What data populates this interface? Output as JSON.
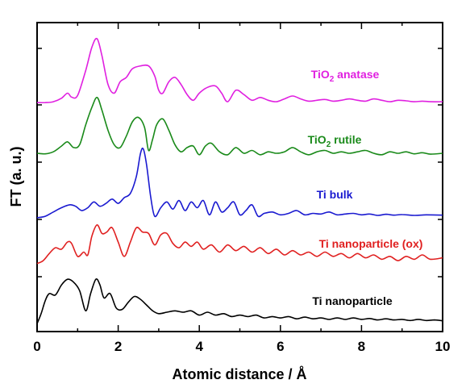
{
  "chart_data": {
    "type": "line",
    "xlabel": "Atomic distance / Å",
    "ylabel": "FT (a. u.)",
    "xlim": [
      0,
      10
    ],
    "ylim": [
      0,
      10
    ],
    "x_ticks": [
      0,
      2,
      4,
      6,
      8,
      10
    ],
    "x_tick_labels": [
      "0",
      "2",
      "4",
      "6",
      "8",
      "10"
    ],
    "grid": false,
    "series": [
      {
        "name_main": "TiO",
        "name_sub": "2",
        "name_rest": " anatase",
        "color": "#e020e0",
        "points": [
          [
            0,
            7.77
          ],
          [
            0.2,
            7.77
          ],
          [
            0.4,
            7.8
          ],
          [
            0.6,
            7.92
          ],
          [
            0.75,
            8.1
          ],
          [
            0.85,
            7.96
          ],
          [
            1.0,
            8.02
          ],
          [
            1.2,
            8.9
          ],
          [
            1.35,
            9.7
          ],
          [
            1.48,
            10.0
          ],
          [
            1.6,
            9.4
          ],
          [
            1.75,
            8.4
          ],
          [
            1.9,
            8.1
          ],
          [
            2.05,
            8.5
          ],
          [
            2.2,
            8.65
          ],
          [
            2.35,
            8.95
          ],
          [
            2.55,
            9.05
          ],
          [
            2.75,
            9.05
          ],
          [
            2.9,
            8.7
          ],
          [
            3.0,
            8.2
          ],
          [
            3.1,
            8.1
          ],
          [
            3.25,
            8.5
          ],
          [
            3.4,
            8.65
          ],
          [
            3.55,
            8.4
          ],
          [
            3.7,
            8.05
          ],
          [
            3.85,
            7.85
          ],
          [
            4.0,
            8.1
          ],
          [
            4.2,
            8.3
          ],
          [
            4.4,
            8.35
          ],
          [
            4.55,
            8.1
          ],
          [
            4.7,
            7.8
          ],
          [
            4.9,
            8.2
          ],
          [
            5.1,
            8.05
          ],
          [
            5.3,
            7.85
          ],
          [
            5.5,
            7.95
          ],
          [
            5.7,
            7.85
          ],
          [
            5.9,
            7.8
          ],
          [
            6.1,
            7.9
          ],
          [
            6.3,
            8.0
          ],
          [
            6.5,
            7.9
          ],
          [
            6.7,
            7.82
          ],
          [
            6.9,
            7.85
          ],
          [
            7.1,
            7.88
          ],
          [
            7.3,
            7.82
          ],
          [
            7.5,
            7.85
          ],
          [
            7.7,
            7.9
          ],
          [
            7.9,
            7.85
          ],
          [
            8.1,
            7.82
          ],
          [
            8.3,
            7.9
          ],
          [
            8.5,
            7.85
          ],
          [
            8.7,
            7.8
          ],
          [
            8.9,
            7.85
          ],
          [
            9.1,
            7.83
          ],
          [
            9.3,
            7.8
          ],
          [
            9.5,
            7.82
          ],
          [
            9.7,
            7.8
          ],
          [
            10.0,
            7.8
          ]
        ]
      },
      {
        "name_main": "TiO",
        "name_sub": "2",
        "name_rest": " rutile",
        "color": "#1a8a1a",
        "points": [
          [
            0,
            6.0
          ],
          [
            0.2,
            5.98
          ],
          [
            0.4,
            6.05
          ],
          [
            0.6,
            6.25
          ],
          [
            0.75,
            6.4
          ],
          [
            0.9,
            6.2
          ],
          [
            1.05,
            6.3
          ],
          [
            1.2,
            7.0
          ],
          [
            1.35,
            7.6
          ],
          [
            1.48,
            7.95
          ],
          [
            1.6,
            7.5
          ],
          [
            1.75,
            6.8
          ],
          [
            1.9,
            6.3
          ],
          [
            2.05,
            6.2
          ],
          [
            2.2,
            6.6
          ],
          [
            2.35,
            7.1
          ],
          [
            2.5,
            7.25
          ],
          [
            2.65,
            6.9
          ],
          [
            2.75,
            6.1
          ],
          [
            2.85,
            6.5
          ],
          [
            2.95,
            7.0
          ],
          [
            3.1,
            7.2
          ],
          [
            3.25,
            6.8
          ],
          [
            3.4,
            6.3
          ],
          [
            3.55,
            6.05
          ],
          [
            3.7,
            6.2
          ],
          [
            3.85,
            6.25
          ],
          [
            4.0,
            5.95
          ],
          [
            4.15,
            6.25
          ],
          [
            4.3,
            6.35
          ],
          [
            4.5,
            6.05
          ],
          [
            4.7,
            5.95
          ],
          [
            4.9,
            6.2
          ],
          [
            5.1,
            6.0
          ],
          [
            5.3,
            6.1
          ],
          [
            5.5,
            5.95
          ],
          [
            5.7,
            6.05
          ],
          [
            5.9,
            6.0
          ],
          [
            6.1,
            6.05
          ],
          [
            6.3,
            6.2
          ],
          [
            6.5,
            6.05
          ],
          [
            6.7,
            5.95
          ],
          [
            6.9,
            6.05
          ],
          [
            7.1,
            6.1
          ],
          [
            7.3,
            6.0
          ],
          [
            7.5,
            6.05
          ],
          [
            7.7,
            6.0
          ],
          [
            7.9,
            6.05
          ],
          [
            8.1,
            6.1
          ],
          [
            8.3,
            6.0
          ],
          [
            8.5,
            5.95
          ],
          [
            8.7,
            6.05
          ],
          [
            8.9,
            6.0
          ],
          [
            9.1,
            6.05
          ],
          [
            9.3,
            5.98
          ],
          [
            9.5,
            6.02
          ],
          [
            9.7,
            5.97
          ],
          [
            10.0,
            6.0
          ]
        ]
      },
      {
        "name_main": "Ti bulk",
        "name_sub": "",
        "name_rest": "",
        "color": "#1a1ad0",
        "points": [
          [
            0,
            3.75
          ],
          [
            0.2,
            3.8
          ],
          [
            0.4,
            3.95
          ],
          [
            0.6,
            4.1
          ],
          [
            0.8,
            4.2
          ],
          [
            0.95,
            4.15
          ],
          [
            1.1,
            4.0
          ],
          [
            1.25,
            4.1
          ],
          [
            1.4,
            4.3
          ],
          [
            1.55,
            4.15
          ],
          [
            1.7,
            4.25
          ],
          [
            1.85,
            4.4
          ],
          [
            2.0,
            4.25
          ],
          [
            2.15,
            4.45
          ],
          [
            2.3,
            4.6
          ],
          [
            2.45,
            5.2
          ],
          [
            2.55,
            6.0
          ],
          [
            2.62,
            6.15
          ],
          [
            2.7,
            5.6
          ],
          [
            2.8,
            4.5
          ],
          [
            2.9,
            3.8
          ],
          [
            3.05,
            4.1
          ],
          [
            3.2,
            4.3
          ],
          [
            3.35,
            4.05
          ],
          [
            3.5,
            4.35
          ],
          [
            3.65,
            4.0
          ],
          [
            3.8,
            4.3
          ],
          [
            3.95,
            4.1
          ],
          [
            4.1,
            4.35
          ],
          [
            4.25,
            3.85
          ],
          [
            4.4,
            4.3
          ],
          [
            4.55,
            3.95
          ],
          [
            4.7,
            4.1
          ],
          [
            4.85,
            4.3
          ],
          [
            5.0,
            3.85
          ],
          [
            5.15,
            4.0
          ],
          [
            5.3,
            4.2
          ],
          [
            5.45,
            3.8
          ],
          [
            5.6,
            3.9
          ],
          [
            5.8,
            3.95
          ],
          [
            6.0,
            3.85
          ],
          [
            6.2,
            3.9
          ],
          [
            6.4,
            4.0
          ],
          [
            6.6,
            3.85
          ],
          [
            6.8,
            3.9
          ],
          [
            7.0,
            3.88
          ],
          [
            7.2,
            3.95
          ],
          [
            7.4,
            3.85
          ],
          [
            7.6,
            3.88
          ],
          [
            7.8,
            3.9
          ],
          [
            8.0,
            3.85
          ],
          [
            8.2,
            3.88
          ],
          [
            8.4,
            3.83
          ],
          [
            8.6,
            3.87
          ],
          [
            8.8,
            3.84
          ],
          [
            9.0,
            3.86
          ],
          [
            9.3,
            3.83
          ],
          [
            9.6,
            3.85
          ],
          [
            10.0,
            3.84
          ]
        ]
      },
      {
        "name_main": "Ti nanoparticle (ox)",
        "name_sub": "",
        "name_rest": "",
        "color": "#e02020",
        "points": [
          [
            0,
            2.15
          ],
          [
            0.15,
            2.25
          ],
          [
            0.3,
            2.5
          ],
          [
            0.45,
            2.7
          ],
          [
            0.6,
            2.65
          ],
          [
            0.75,
            2.9
          ],
          [
            0.85,
            2.85
          ],
          [
            1.0,
            2.4
          ],
          [
            1.15,
            2.55
          ],
          [
            1.25,
            2.45
          ],
          [
            1.35,
            3.1
          ],
          [
            1.48,
            3.5
          ],
          [
            1.6,
            3.2
          ],
          [
            1.72,
            3.25
          ],
          [
            1.85,
            3.4
          ],
          [
            2.0,
            2.9
          ],
          [
            2.15,
            2.4
          ],
          [
            2.3,
            2.9
          ],
          [
            2.45,
            3.4
          ],
          [
            2.6,
            3.25
          ],
          [
            2.75,
            3.2
          ],
          [
            2.9,
            2.8
          ],
          [
            3.05,
            3.15
          ],
          [
            3.2,
            3.2
          ],
          [
            3.35,
            2.85
          ],
          [
            3.5,
            2.7
          ],
          [
            3.65,
            2.9
          ],
          [
            3.8,
            2.75
          ],
          [
            3.95,
            2.9
          ],
          [
            4.1,
            2.65
          ],
          [
            4.3,
            2.8
          ],
          [
            4.5,
            2.55
          ],
          [
            4.7,
            2.8
          ],
          [
            4.9,
            2.6
          ],
          [
            5.1,
            2.75
          ],
          [
            5.3,
            2.55
          ],
          [
            5.5,
            2.7
          ],
          [
            5.7,
            2.5
          ],
          [
            5.9,
            2.65
          ],
          [
            6.1,
            2.45
          ],
          [
            6.3,
            2.6
          ],
          [
            6.5,
            2.45
          ],
          [
            6.7,
            2.55
          ],
          [
            6.9,
            2.4
          ],
          [
            7.1,
            2.55
          ],
          [
            7.3,
            2.4
          ],
          [
            7.5,
            2.5
          ],
          [
            7.7,
            2.35
          ],
          [
            7.9,
            2.5
          ],
          [
            8.1,
            2.35
          ],
          [
            8.3,
            2.45
          ],
          [
            8.5,
            2.3
          ],
          [
            8.7,
            2.4
          ],
          [
            8.9,
            2.25
          ],
          [
            9.1,
            2.4
          ],
          [
            9.3,
            2.3
          ],
          [
            9.5,
            2.45
          ],
          [
            9.7,
            2.3
          ],
          [
            10.0,
            2.35
          ]
        ]
      },
      {
        "name_main": "Ti nanoparticle",
        "name_sub": "",
        "name_rest": "",
        "color": "#000000",
        "points": [
          [
            0,
            0.05
          ],
          [
            0.1,
            0.4
          ],
          [
            0.2,
            0.85
          ],
          [
            0.3,
            1.1
          ],
          [
            0.45,
            1.05
          ],
          [
            0.6,
            1.4
          ],
          [
            0.75,
            1.6
          ],
          [
            0.9,
            1.5
          ],
          [
            1.05,
            1.2
          ],
          [
            1.2,
            0.5
          ],
          [
            1.32,
            1.1
          ],
          [
            1.45,
            1.6
          ],
          [
            1.55,
            1.4
          ],
          [
            1.65,
            0.95
          ],
          [
            1.8,
            1.1
          ],
          [
            1.95,
            0.6
          ],
          [
            2.1,
            0.55
          ],
          [
            2.25,
            0.8
          ],
          [
            2.4,
            1.0
          ],
          [
            2.55,
            0.9
          ],
          [
            2.7,
            0.7
          ],
          [
            2.85,
            0.5
          ],
          [
            3.0,
            0.4
          ],
          [
            3.2,
            0.45
          ],
          [
            3.4,
            0.5
          ],
          [
            3.6,
            0.45
          ],
          [
            3.8,
            0.5
          ],
          [
            4.0,
            0.35
          ],
          [
            4.2,
            0.45
          ],
          [
            4.4,
            0.35
          ],
          [
            4.6,
            0.4
          ],
          [
            4.8,
            0.3
          ],
          [
            5.0,
            0.35
          ],
          [
            5.2,
            0.3
          ],
          [
            5.4,
            0.35
          ],
          [
            5.6,
            0.25
          ],
          [
            5.8,
            0.3
          ],
          [
            6.0,
            0.25
          ],
          [
            6.2,
            0.3
          ],
          [
            6.4,
            0.22
          ],
          [
            6.6,
            0.28
          ],
          [
            6.8,
            0.22
          ],
          [
            7.0,
            0.25
          ],
          [
            7.2,
            0.2
          ],
          [
            7.4,
            0.25
          ],
          [
            7.6,
            0.2
          ],
          [
            7.8,
            0.25
          ],
          [
            8.0,
            0.2
          ],
          [
            8.2,
            0.23
          ],
          [
            8.4,
            0.18
          ],
          [
            8.6,
            0.22
          ],
          [
            8.8,
            0.18
          ],
          [
            9.0,
            0.2
          ],
          [
            9.2,
            0.16
          ],
          [
            9.4,
            0.2
          ],
          [
            9.6,
            0.16
          ],
          [
            9.8,
            0.18
          ],
          [
            10.0,
            0.15
          ]
        ]
      }
    ]
  }
}
